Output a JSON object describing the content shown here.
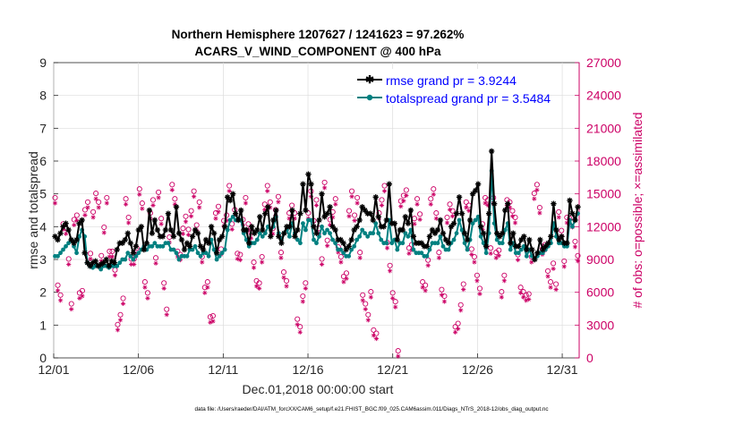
{
  "chart_data": {
    "type": "line",
    "title": "Northern Hemisphere 1207627 / 1241623 = 97.262%",
    "subtitle": "ACARS_V_WIND_COMPONENT @ 400 hPa",
    "xlabel": "Dec.01,2018 00:00:00 start",
    "ylabel_left": "rmse and totalspread",
    "ylabel_right": "# of obs: o=possible; ×=assimilated",
    "footer": "data file: /Users/raeder/DAI/ATM_forcXX/CAM6_setup/f.e21.FHIST_BGC.f09_025.CAM6assim.011/Diags_NTrS_2018-12/obs_diag_output.nc",
    "x_range_days": [
      0,
      31
    ],
    "x_ticks": [
      {
        "day": 0,
        "label": "12/01"
      },
      {
        "day": 5,
        "label": "12/06"
      },
      {
        "day": 10,
        "label": "12/11"
      },
      {
        "day": 15,
        "label": "12/16"
      },
      {
        "day": 20,
        "label": "12/21"
      },
      {
        "day": 25,
        "label": "12/26"
      },
      {
        "day": 30,
        "label": "12/31"
      }
    ],
    "ylim_left": [
      0,
      9
    ],
    "y_ticks_left": [
      "0",
      "1",
      "2",
      "3",
      "4",
      "5",
      "6",
      "7",
      "8",
      "9"
    ],
    "ylim_right": [
      0,
      27000
    ],
    "y_ticks_right": [
      "0",
      "3000",
      "6000",
      "9000",
      "12000",
      "15000",
      "18000",
      "21000",
      "24000",
      "27000"
    ],
    "colors": {
      "rmse": "#000000",
      "spread": "#008080",
      "obs": "#cc0066",
      "legend_text": "#0000ff"
    },
    "series": [
      {
        "name": "rmse grand pr = 3.9244",
        "values": [
          3.7,
          3.6,
          3.8,
          4.0,
          4.1,
          3.9,
          3.6,
          3.5,
          3.6,
          4.1,
          4.2,
          3.2,
          2.9,
          2.8,
          2.9,
          2.95,
          2.8,
          2.85,
          2.9,
          3.0,
          2.8,
          2.95,
          2.9,
          3.3,
          3.5,
          3.5,
          3.6,
          3.8,
          3.5,
          3.2,
          3.4,
          3.9,
          4.0,
          3.3,
          3.5,
          4.5,
          3.8,
          4.2,
          3.9,
          3.7,
          3.7,
          3.9,
          4.4,
          3.9,
          3.7,
          4.6,
          3.8,
          3.6,
          3.3,
          3.5,
          3.4,
          3.7,
          3.9,
          3.8,
          3.4,
          3.3,
          3.6,
          3.5,
          4.0,
          3.8,
          3.2,
          3.6,
          3.7,
          4.0,
          4.9,
          4.8,
          5.0,
          4.4,
          4.2,
          4.5,
          3.9,
          3.9,
          3.5,
          4.0,
          3.8,
          3.9,
          4.3,
          3.9,
          4.4,
          4.6,
          3.7,
          4.2,
          4.5,
          3.7,
          3.5,
          3.8,
          4.0,
          4.0,
          4.5,
          3.7,
          3.9,
          4.4,
          5.3,
          4.5,
          5.6,
          5.3,
          4.0,
          3.8,
          4.2,
          5.0,
          4.3,
          4.4,
          4.6,
          4.0,
          3.9,
          3.6,
          3.6,
          3.5,
          3.3,
          3.4,
          3.6,
          3.9,
          4.0,
          4.2,
          4.6,
          4.5,
          4.4,
          4.4,
          4.2,
          4.9,
          4.3,
          4.0,
          4.0,
          4.2,
          5.3,
          4.1,
          4.1,
          3.6,
          3.9,
          3.9,
          4.3,
          4.1,
          4.5,
          3.7,
          3.5,
          3.5,
          3.5,
          3.4,
          3.4,
          3.7,
          3.9,
          3.8,
          3.9,
          4.2,
          3.8,
          3.6,
          3.5,
          4.0,
          4.1,
          4.4,
          4.9,
          4.4,
          3.8,
          3.6,
          4.2,
          5.0,
          5.1,
          5.3,
          4.0,
          3.8,
          3.4,
          4.4,
          6.3,
          4.7,
          3.8,
          3.7,
          3.8,
          4.5,
          4.7,
          3.5,
          3.8,
          3.4,
          3.4,
          3.6,
          3.7,
          3.3,
          3.6,
          3.3,
          3.0,
          3.2,
          3.6,
          3.3,
          3.4,
          3.5,
          3.7,
          4.7,
          3.9,
          3.6,
          3.7,
          3.5,
          3.5,
          4.8,
          4.4,
          4.2,
          4.6
        ]
      },
      {
        "name": "totalspread grand pr = 3.5484",
        "values": [
          3.1,
          3.1,
          3.2,
          3.3,
          3.4,
          3.5,
          3.6,
          3.4,
          3.2,
          3.7,
          3.9,
          3.7,
          2.9,
          2.8,
          2.75,
          2.8,
          2.8,
          2.7,
          2.8,
          2.8,
          2.75,
          2.8,
          2.8,
          2.8,
          2.9,
          3.0,
          3.0,
          3.2,
          3.1,
          3.0,
          3.1,
          3.2,
          3.3,
          3.4,
          3.3,
          3.4,
          3.4,
          3.5,
          3.4,
          3.4,
          3.4,
          3.5,
          3.5,
          3.3,
          3.3,
          3.2,
          3.0,
          3.1,
          3.1,
          3.1,
          3.3,
          3.3,
          3.4,
          3.2,
          3.1,
          3.2,
          3.2,
          3.1,
          3.6,
          3.3,
          3.0,
          3.1,
          3.2,
          3.3,
          3.9,
          4.2,
          4.3,
          4.2,
          4.2,
          4.2,
          3.8,
          3.6,
          3.4,
          3.5,
          3.5,
          3.6,
          3.8,
          3.7,
          3.8,
          4.0,
          3.9,
          4.0,
          4.3,
          3.8,
          3.6,
          3.8,
          3.9,
          3.7,
          4.1,
          3.8,
          3.6,
          3.5,
          4.1,
          3.9,
          4.2,
          4.2,
          3.6,
          3.5,
          3.7,
          4.0,
          3.8,
          3.9,
          3.8,
          3.6,
          3.5,
          3.3,
          3.3,
          3.2,
          3.1,
          3.1,
          3.3,
          3.4,
          3.6,
          3.7,
          3.9,
          3.8,
          3.7,
          3.8,
          3.8,
          4.1,
          3.8,
          3.6,
          3.5,
          3.5,
          4.2,
          3.5,
          3.6,
          3.3,
          3.5,
          3.5,
          3.8,
          3.7,
          3.9,
          3.3,
          3.2,
          3.2,
          3.2,
          3.1,
          3.1,
          3.3,
          3.5,
          3.5,
          3.5,
          3.7,
          3.4,
          3.3,
          3.3,
          3.5,
          3.6,
          3.8,
          4.2,
          3.9,
          3.5,
          3.3,
          3.6,
          4.1,
          4.2,
          4.3,
          3.7,
          3.5,
          3.2,
          3.8,
          5.7,
          4.1,
          3.6,
          3.5,
          3.5,
          3.9,
          4.1,
          3.3,
          3.5,
          3.2,
          3.2,
          3.3,
          3.4,
          3.1,
          3.3,
          3.1,
          3.0,
          3.1,
          3.2,
          3.2,
          3.3,
          3.4,
          3.5,
          4.1,
          3.7,
          3.5,
          3.5,
          3.4,
          3.4,
          4.2,
          4.0,
          4.2,
          4.4
        ]
      }
    ],
    "obs_possible": [
      14400,
      6400,
      5500,
      12000,
      11600,
      8800,
      4700,
      12400,
      12800,
      5700,
      5900,
      13300,
      14000,
      9300,
      13100,
      14800,
      14000,
      9100,
      11700,
      14400,
      9500,
      9500,
      7800,
      2800,
      3700,
      5200,
      14300,
      12600,
      8800,
      8800,
      9800,
      15200,
      13900,
      6700,
      5700,
      13000,
      14200,
      8900,
      14900,
      12500,
      6600,
      4200,
      10800,
      15600,
      14300,
      9500,
      9200,
      11600,
      12700,
      11500,
      13200,
      15000,
      11900,
      14000,
      9000,
      6200,
      6700,
      3500,
      3600,
      13000,
      13600,
      9700,
      12300,
      12800,
      15500,
      12000,
      13300,
      9300,
      9200,
      12400,
      14400,
      12000,
      11200,
      8500,
      6800,
      6600,
      9000,
      13800,
      15500,
      14000,
      11600,
      13300,
      14500,
      9400,
      7600,
      6800,
      13000,
      13700,
      13000,
      3300,
      2600,
      5400,
      6600,
      13000,
      15000,
      12300,
      14200,
      11600,
      8800,
      15800,
      10500,
      12400,
      13100,
      14300,
      9900,
      9000,
      7200,
      7500,
      13200,
      15000,
      12800,
      14400,
      9400,
      5500,
      4700,
      3700,
      5800,
      2300,
      2000,
      13000,
      14200,
      15500,
      10300,
      8200,
      5700,
      4900,
      400,
      14100,
      14600,
      15100,
      9800,
      10100,
      12500,
      14300,
      12900,
      6700,
      6400,
      8700,
      14300,
      15200,
      13000,
      9400,
      6000,
      5400,
      12600,
      13800,
      13200,
      2600,
      2900,
      4600,
      6500,
      14000,
      13700,
      9700,
      9000,
      7300,
      6100,
      12000,
      14400,
      14200,
      9800,
      14400,
      9400,
      9600,
      5800,
      7300,
      14200,
      14000,
      13200,
      12600,
      9200,
      6200,
      5800,
      5500,
      5600,
      9000,
      14800,
      15600,
      13500,
      9700,
      10100,
      7700,
      6700,
      8400,
      6500,
      13100,
      11400,
      8600,
      12600,
      12500,
      12200,
      10400,
      9100
    ]
  }
}
